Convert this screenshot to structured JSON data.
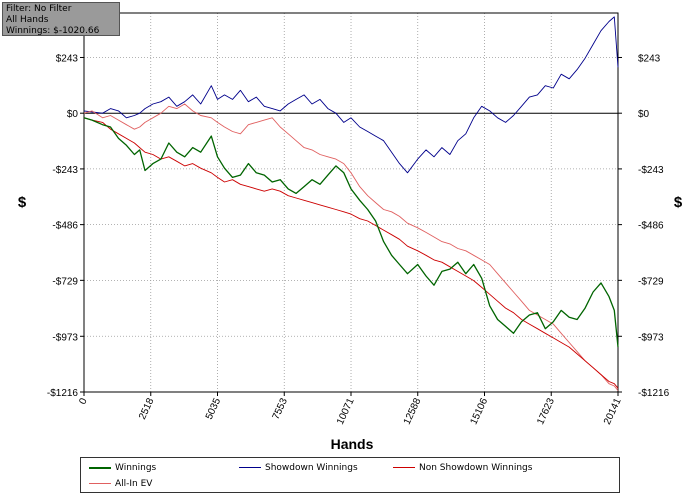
{
  "info_box": {
    "filter_label": "Filter: No Filter",
    "hands_label": "All Hands",
    "winnings_label": "Winnings: $-1020.66"
  },
  "chart_data": {
    "type": "line",
    "title": "",
    "xlabel": "Hands",
    "ylabel": "$",
    "xlim": [
      0,
      20141
    ],
    "ylim": [
      -1216,
      437
    ],
    "grid": true,
    "x_ticks": [
      0,
      2518,
      5035,
      7553,
      10071,
      12588,
      15106,
      17623,
      20141
    ],
    "x_tick_labels": [
      "0",
      "2518",
      "5035",
      "7553",
      "10071",
      "12588",
      "15106",
      "17623",
      "20141"
    ],
    "y_ticks": [
      243,
      0,
      -243,
      -486,
      -729,
      -973,
      -1216
    ],
    "y_tick_labels": [
      "$243",
      "$0",
      "-$243",
      "-$486",
      "-$729",
      "-$973",
      "-$1216"
    ],
    "legend_position": "bottom",
    "series": [
      {
        "name": "Winnings",
        "color": "#006400",
        "x": [
          0,
          300,
          700,
          1000,
          1300,
          1600,
          1900,
          2100,
          2300,
          2600,
          2900,
          3200,
          3500,
          3800,
          4100,
          4400,
          4800,
          5035,
          5300,
          5600,
          5900,
          6200,
          6500,
          6800,
          7100,
          7400,
          7700,
          8000,
          8300,
          8600,
          8900,
          9200,
          9500,
          9800,
          10071,
          10400,
          10700,
          11000,
          11300,
          11600,
          11900,
          12200,
          12588,
          12900,
          13200,
          13500,
          13800,
          14100,
          14400,
          14700,
          15000,
          15300,
          15600,
          15900,
          16200,
          16500,
          16800,
          17100,
          17400,
          17700,
          18000,
          18300,
          18600,
          18900,
          19200,
          19500,
          19800,
          20000,
          20141
        ],
        "values": [
          -20,
          -30,
          -50,
          -60,
          -110,
          -140,
          -180,
          -160,
          -250,
          -220,
          -200,
          -130,
          -170,
          -190,
          -150,
          -170,
          -100,
          -190,
          -240,
          -280,
          -270,
          -220,
          -260,
          -270,
          -300,
          -290,
          -330,
          -350,
          -320,
          -290,
          -310,
          -270,
          -230,
          -260,
          -330,
          -380,
          -420,
          -470,
          -560,
          -620,
          -660,
          -700,
          -660,
          -710,
          -750,
          -690,
          -680,
          -650,
          -700,
          -660,
          -720,
          -840,
          -900,
          -930,
          -960,
          -910,
          -880,
          -870,
          -940,
          -910,
          -860,
          -890,
          -900,
          -850,
          -780,
          -740,
          -800,
          -860,
          -1020
        ]
      },
      {
        "name": "Showdown Winnings",
        "color": "#00008b",
        "x": [
          0,
          300,
          700,
          1000,
          1300,
          1600,
          1900,
          2100,
          2300,
          2600,
          2900,
          3200,
          3500,
          3800,
          4100,
          4400,
          4800,
          5035,
          5300,
          5600,
          5900,
          6200,
          6500,
          6800,
          7100,
          7400,
          7700,
          8000,
          8300,
          8600,
          8900,
          9200,
          9500,
          9800,
          10071,
          10400,
          10700,
          11000,
          11300,
          11600,
          11900,
          12200,
          12588,
          12900,
          13200,
          13500,
          13800,
          14100,
          14400,
          14700,
          15000,
          15300,
          15600,
          15900,
          16200,
          16500,
          16800,
          17100,
          17400,
          17700,
          18000,
          18300,
          18600,
          18900,
          19200,
          19500,
          19800,
          20000,
          20141
        ],
        "values": [
          10,
          5,
          0,
          20,
          10,
          -20,
          -10,
          0,
          20,
          40,
          50,
          70,
          30,
          50,
          80,
          40,
          120,
          60,
          80,
          60,
          100,
          50,
          70,
          30,
          20,
          10,
          40,
          60,
          80,
          40,
          60,
          20,
          0,
          -40,
          -20,
          -60,
          -80,
          -100,
          -120,
          -170,
          -220,
          -260,
          -200,
          -160,
          -190,
          -150,
          -180,
          -120,
          -90,
          -20,
          30,
          10,
          -20,
          -40,
          -10,
          30,
          70,
          80,
          120,
          110,
          170,
          150,
          190,
          240,
          300,
          360,
          400,
          420,
          200
        ]
      },
      {
        "name": "Non Showdown Winnings",
        "color": "#cc0000",
        "x": [
          0,
          300,
          700,
          1000,
          1300,
          1600,
          1900,
          2100,
          2300,
          2600,
          2900,
          3200,
          3500,
          3800,
          4100,
          4400,
          4800,
          5035,
          5300,
          5600,
          5900,
          6200,
          6500,
          6800,
          7100,
          7400,
          7700,
          8000,
          8300,
          8600,
          8900,
          9200,
          9500,
          9800,
          10071,
          10400,
          10700,
          11000,
          11300,
          11600,
          11900,
          12200,
          12588,
          12900,
          13200,
          13500,
          13800,
          14100,
          14400,
          14700,
          15000,
          15300,
          15600,
          15900,
          16200,
          16500,
          16800,
          17100,
          17400,
          17700,
          18000,
          18300,
          18600,
          18900,
          19200,
          19500,
          19800,
          20000,
          20141
        ],
        "values": [
          -20,
          -30,
          -40,
          -70,
          -90,
          -110,
          -130,
          -150,
          -170,
          -180,
          -200,
          -190,
          -210,
          -230,
          -220,
          -240,
          -260,
          -280,
          -300,
          -290,
          -310,
          -320,
          -330,
          -340,
          -330,
          -340,
          -360,
          -370,
          -380,
          -390,
          -400,
          -410,
          -420,
          -430,
          -440,
          -460,
          -470,
          -490,
          -510,
          -530,
          -550,
          -580,
          -600,
          -620,
          -640,
          -650,
          -670,
          -690,
          -710,
          -730,
          -760,
          -790,
          -820,
          -850,
          -870,
          -900,
          -920,
          -940,
          -960,
          -980,
          -1000,
          -1020,
          -1050,
          -1080,
          -1110,
          -1140,
          -1170,
          -1180,
          -1200
        ]
      },
      {
        "name": "All-In EV",
        "color": "#e06060",
        "x": [
          0,
          300,
          700,
          1000,
          1300,
          1600,
          1900,
          2100,
          2300,
          2600,
          2900,
          3200,
          3500,
          3800,
          4100,
          4400,
          4800,
          5035,
          5300,
          5600,
          5900,
          6200,
          6500,
          6800,
          7100,
          7400,
          7700,
          8000,
          8300,
          8600,
          8900,
          9200,
          9500,
          9800,
          10071,
          10400,
          10700,
          11000,
          11300,
          11600,
          11900,
          12200,
          12588,
          12900,
          13200,
          13500,
          13800,
          14100,
          14400,
          14700,
          15000,
          15300,
          15600,
          15900,
          16200,
          16500,
          16800,
          17100,
          17400,
          17700,
          18000,
          18300,
          18600,
          18900,
          19200,
          19500,
          19800,
          20000,
          20141
        ],
        "values": [
          0,
          10,
          -20,
          -10,
          -30,
          -50,
          -70,
          -60,
          -40,
          -20,
          0,
          30,
          20,
          40,
          10,
          -10,
          -20,
          -40,
          -60,
          -80,
          -90,
          -50,
          -40,
          -30,
          -20,
          -60,
          -90,
          -120,
          -150,
          -160,
          -180,
          -190,
          -200,
          -220,
          -260,
          -320,
          -360,
          -390,
          -420,
          -430,
          -450,
          -480,
          -500,
          -520,
          -540,
          -560,
          -570,
          -590,
          -600,
          -620,
          -640,
          -660,
          -700,
          -740,
          -780,
          -820,
          -860,
          -880,
          -900,
          -920,
          -960,
          -1000,
          -1040,
          -1080,
          -1110,
          -1140,
          -1180,
          -1190,
          -1210
        ]
      }
    ]
  }
}
